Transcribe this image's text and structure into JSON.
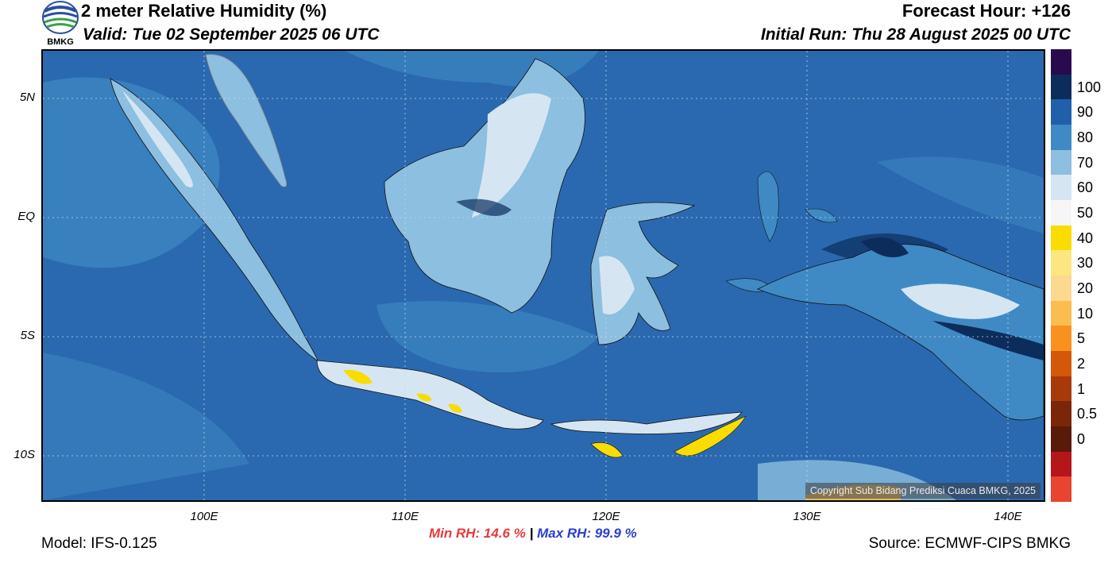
{
  "header": {
    "title": "2 meter Relative Humidity (%)",
    "valid": "Valid: Tue 02 September 2025 06 UTC",
    "forecast_hour": "Forecast Hour: +126",
    "initial_run": "Initial Run: Thu 28 August 2025 00 UTC",
    "logo_text": "BMKG"
  },
  "axes": {
    "lat_labels": [
      "5N",
      "EQ",
      "5S",
      "10S"
    ],
    "lon_labels": [
      "100E",
      "110E",
      "120E",
      "130E",
      "140E"
    ]
  },
  "colorbar": {
    "labels": [
      "100",
      "90",
      "80",
      "70",
      "60",
      "50",
      "40",
      "30",
      "20",
      "10",
      "5",
      "2",
      "1",
      "0.5",
      "0"
    ],
    "colors": [
      "#2a0a4e",
      "#0c2d5c",
      "#2060ab",
      "#3f8ac4",
      "#8cbfe0",
      "#d5e6f2",
      "#f6f6f6",
      "#f9dc00",
      "#fce680",
      "#fbd98e",
      "#fbbd50",
      "#f9911e",
      "#d4580a",
      "#a8390b",
      "#7a2608",
      "#5a1a0a",
      "#b4161a",
      "#e84530"
    ]
  },
  "map": {
    "ocean_color": "#2a69b0",
    "copyright": "Copyright Sub Bidang Prediksi Cuaca BMKG, 2025"
  },
  "footer": {
    "model": "Model: IFS-0.125",
    "min_rh": "Min RH:  14.6 %",
    "separator": "|",
    "max_rh": "Max RH:  99.9 %",
    "source": "Source: ECMWF-CIPS BMKG"
  }
}
